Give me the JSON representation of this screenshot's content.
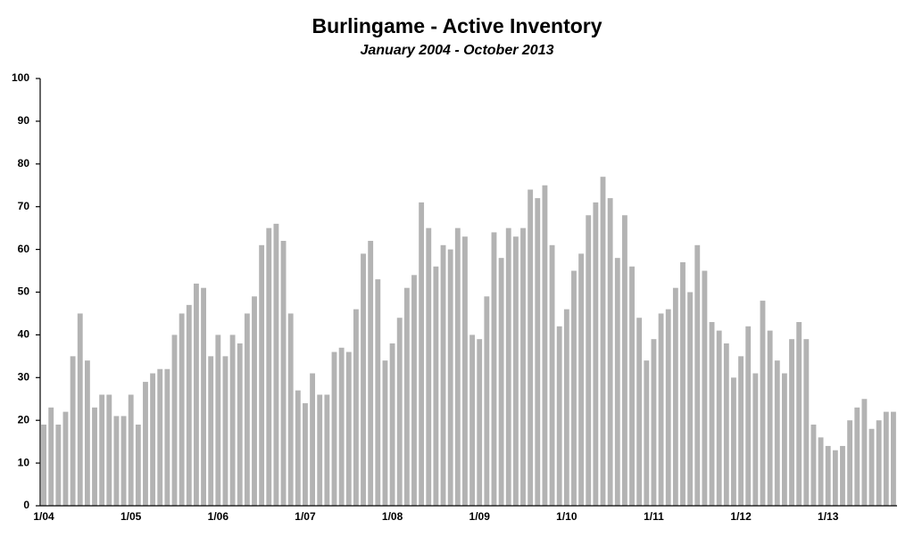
{
  "chart_data": {
    "type": "bar",
    "title": "Burlingame - Active Inventory",
    "subtitle": "January 2004 - October 2013",
    "categories": [
      "1/04",
      null,
      null,
      null,
      null,
      null,
      null,
      null,
      null,
      null,
      null,
      null,
      "1/05",
      null,
      null,
      null,
      null,
      null,
      null,
      null,
      null,
      null,
      null,
      null,
      "1/06",
      null,
      null,
      null,
      null,
      null,
      null,
      null,
      null,
      null,
      null,
      null,
      "1/07",
      null,
      null,
      null,
      null,
      null,
      null,
      null,
      null,
      null,
      null,
      null,
      "1/08",
      null,
      null,
      null,
      null,
      null,
      null,
      null,
      null,
      null,
      null,
      null,
      "1/09",
      null,
      null,
      null,
      null,
      null,
      null,
      null,
      null,
      null,
      null,
      null,
      "1/10",
      null,
      null,
      null,
      null,
      null,
      null,
      null,
      null,
      null,
      null,
      null,
      "1/11",
      null,
      null,
      null,
      null,
      null,
      null,
      null,
      null,
      null,
      null,
      null,
      "1/12",
      null,
      null,
      null,
      null,
      null,
      null,
      null,
      null,
      null,
      null,
      null,
      "1/13",
      null,
      null,
      null,
      null,
      null,
      null,
      null,
      null,
      null
    ],
    "values": [
      19,
      23,
      19,
      22,
      35,
      45,
      34,
      23,
      26,
      26,
      21,
      21,
      26,
      19,
      29,
      31,
      32,
      32,
      40,
      45,
      47,
      52,
      51,
      35,
      40,
      35,
      40,
      38,
      45,
      49,
      61,
      65,
      66,
      62,
      45,
      27,
      24,
      31,
      26,
      26,
      36,
      37,
      36,
      46,
      59,
      62,
      53,
      34,
      38,
      44,
      51,
      54,
      71,
      65,
      56,
      61,
      60,
      65,
      63,
      40,
      39,
      49,
      64,
      58,
      65,
      63,
      65,
      74,
      72,
      75,
      61,
      42,
      46,
      55,
      59,
      68,
      71,
      77,
      72,
      58,
      68,
      56,
      44,
      34,
      39,
      45,
      46,
      51,
      57,
      50,
      61,
      55,
      43,
      41,
      38,
      30,
      35,
      42,
      31,
      48,
      41,
      34,
      31,
      39,
      43,
      39,
      19,
      16,
      14,
      13,
      14,
      20,
      23,
      25,
      18,
      20,
      22,
      22
    ],
    "color": "#b3b3b3",
    "ylim": [
      0,
      100
    ],
    "yticks": [
      0,
      10,
      20,
      30,
      40,
      50,
      60,
      70,
      80,
      90,
      100
    ],
    "grid": false
  }
}
